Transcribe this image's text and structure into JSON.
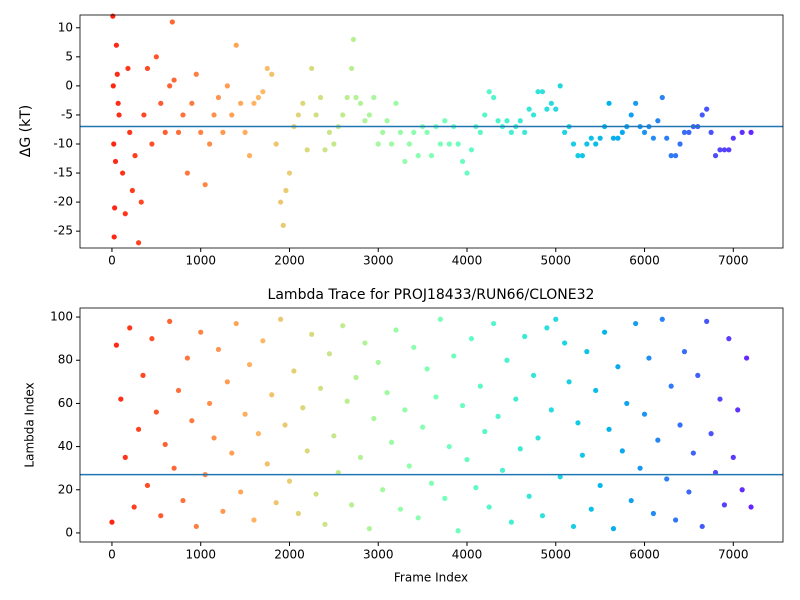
{
  "chart_data": [
    {
      "type": "scatter",
      "ylabel": "ΔG (kT)",
      "colormap": "rainbow_r",
      "x": [
        10,
        15,
        20,
        25,
        30,
        40,
        50,
        60,
        70,
        80,
        120,
        150,
        180,
        200,
        230,
        260,
        300,
        330,
        360,
        400,
        450,
        500,
        550,
        600,
        650,
        680,
        700,
        750,
        800,
        850,
        900,
        950,
        1000,
        1050,
        1100,
        1150,
        1200,
        1250,
        1300,
        1350,
        1400,
        1450,
        1500,
        1550,
        1600,
        1650,
        1700,
        1750,
        1800,
        1850,
        1900,
        1930,
        1960,
        2000,
        2050,
        2100,
        2150,
        2200,
        2250,
        2300,
        2350,
        2400,
        2450,
        2500,
        2550,
        2600,
        2650,
        2700,
        2720,
        2750,
        2800,
        2850,
        2900,
        2950,
        3000,
        3050,
        3100,
        3150,
        3200,
        3250,
        3300,
        3350,
        3400,
        3450,
        3500,
        3550,
        3600,
        3650,
        3700,
        3750,
        3800,
        3850,
        3900,
        3950,
        4000,
        4050,
        4100,
        4150,
        4200,
        4250,
        4300,
        4350,
        4400,
        4450,
        4500,
        4550,
        4600,
        4650,
        4700,
        4750,
        4800,
        4850,
        4900,
        4950,
        5000,
        5050,
        5100,
        5150,
        5200,
        5250,
        5300,
        5350,
        5400,
        5450,
        5500,
        5550,
        5600,
        5650,
        5700,
        5750,
        5800,
        5850,
        5900,
        5950,
        6000,
        6050,
        6100,
        6150,
        6200,
        6250,
        6300,
        6350,
        6400,
        6450,
        6500,
        6550,
        6600,
        6650,
        6700,
        6750,
        6800,
        6850,
        6900,
        6950,
        7000,
        7100,
        7200
      ],
      "values": [
        12,
        0,
        -10,
        -26,
        -21,
        -13,
        7,
        2,
        -3,
        -5,
        -15,
        -22,
        3,
        -8,
        -18,
        -12,
        -27,
        -20,
        -5,
        3,
        -10,
        5,
        -3,
        -8,
        0,
        11,
        1,
        -8,
        -5,
        -15,
        -3,
        2,
        -8,
        -17,
        -10,
        -5,
        -2,
        -8,
        0,
        -5,
        7,
        -3,
        -8,
        -12,
        -3,
        -2,
        -1,
        3,
        2,
        -10,
        -20,
        -24,
        -18,
        -15,
        -7,
        -5,
        -3,
        -11,
        3,
        -5,
        -2,
        -11,
        -8,
        -10,
        -7,
        -5,
        -2,
        3,
        8,
        -2,
        -3,
        -6,
        -5,
        -2,
        -10,
        -8,
        -6,
        -10,
        -3,
        -8,
        -13,
        -10,
        -8,
        -12,
        -7,
        -8,
        -12,
        -7,
        -10,
        -6,
        -10,
        -7,
        -10,
        -13,
        -15,
        -11,
        -7,
        -8,
        -5,
        -1,
        -2,
        -6,
        -7,
        -6,
        -8,
        -7,
        -6,
        -8,
        -4,
        -5,
        -1,
        -1,
        -4,
        -3,
        -4,
        0,
        -8,
        -7,
        -10,
        -12,
        -12,
        -10,
        -9,
        -10,
        -9,
        -7,
        -3,
        -9,
        -9,
        -8,
        -7,
        -5,
        -3,
        -7,
        -8,
        -7,
        -9,
        -6,
        -2,
        -9,
        -12,
        -12,
        -10,
        -8,
        -8,
        -7,
        -7,
        -5,
        -4,
        -8,
        -12,
        -11,
        -11,
        -11,
        -9,
        -8,
        -8
      ],
      "hline": -7,
      "xlim": [
        -360,
        7560
      ],
      "xticks": [
        0,
        1000,
        2000,
        3000,
        4000,
        5000,
        6000,
        7000
      ],
      "ylim": [
        -27.9,
        12.2
      ],
      "yticks": [
        -25,
        -20,
        -15,
        -10,
        -5,
        0,
        5,
        10
      ]
    },
    {
      "type": "scatter",
      "title": "Lambda Trace for PROJ18433/RUN66/CLONE32",
      "xlabel": "Frame Index",
      "ylabel": "Lambda Index",
      "colormap": "rainbow_r",
      "x": [
        0,
        50,
        100,
        150,
        200,
        250,
        300,
        350,
        400,
        450,
        500,
        550,
        600,
        650,
        700,
        750,
        800,
        850,
        900,
        950,
        1000,
        1050,
        1100,
        1150,
        1200,
        1250,
        1300,
        1350,
        1400,
        1450,
        1500,
        1550,
        1600,
        1650,
        1700,
        1750,
        1800,
        1850,
        1900,
        1950,
        2000,
        2050,
        2100,
        2150,
        2200,
        2250,
        2300,
        2350,
        2400,
        2450,
        2500,
        2550,
        2600,
        2650,
        2700,
        2750,
        2800,
        2850,
        2900,
        2950,
        3000,
        3050,
        3100,
        3150,
        3200,
        3250,
        3300,
        3350,
        3400,
        3450,
        3500,
        3550,
        3600,
        3650,
        3700,
        3750,
        3800,
        3850,
        3900,
        3950,
        4000,
        4050,
        4100,
        4150,
        4200,
        4250,
        4300,
        4350,
        4400,
        4450,
        4500,
        4550,
        4600,
        4650,
        4700,
        4750,
        4800,
        4850,
        4900,
        4950,
        5000,
        5050,
        5100,
        5150,
        5200,
        5250,
        5300,
        5350,
        5400,
        5450,
        5500,
        5550,
        5600,
        5650,
        5700,
        5750,
        5800,
        5850,
        5900,
        5950,
        6000,
        6050,
        6100,
        6150,
        6200,
        6250,
        6300,
        6350,
        6400,
        6450,
        6500,
        6550,
        6600,
        6650,
        6700,
        6750,
        6800,
        6850,
        6900,
        6950,
        7000,
        7050,
        7100,
        7150,
        7200
      ],
      "values": [
        5,
        87,
        62,
        35,
        95,
        12,
        48,
        73,
        22,
        90,
        56,
        8,
        41,
        98,
        30,
        66,
        15,
        81,
        52,
        3,
        93,
        27,
        60,
        44,
        85,
        10,
        70,
        37,
        97,
        19,
        55,
        78,
        6,
        46,
        89,
        32,
        64,
        14,
        99,
        50,
        24,
        75,
        9,
        58,
        38,
        92,
        18,
        67,
        4,
        83,
        45,
        28,
        96,
        61,
        13,
        72,
        35,
        88,
        2,
        53,
        79,
        20,
        65,
        42,
        94,
        11,
        57,
        31,
        86,
        7,
        49,
        76,
        23,
        63,
        99,
        16,
        40,
        82,
        1,
        59,
        34,
        90,
        21,
        68,
        47,
        12,
        97,
        54,
        29,
        80,
        5,
        62,
        39,
        91,
        17,
        73,
        44,
        8,
        95,
        57,
        99,
        26,
        88,
        70,
        3,
        51,
        36,
        84,
        11,
        66,
        22,
        93,
        48,
        2,
        77,
        38,
        60,
        15,
        97,
        30,
        55,
        81,
        9,
        43,
        99,
        25,
        68,
        6,
        50,
        84,
        19,
        37,
        73,
        3,
        98,
        46,
        28,
        62,
        13,
        90,
        35,
        57,
        20,
        81,
        12
      ],
      "hline": 27,
      "xlim": [
        -360,
        7560
      ],
      "xticks": [
        0,
        1000,
        2000,
        3000,
        4000,
        5000,
        6000,
        7000
      ],
      "ylim": [
        -4.2,
        104.2
      ],
      "yticks": [
        0,
        20,
        40,
        60,
        80,
        100
      ]
    }
  ]
}
